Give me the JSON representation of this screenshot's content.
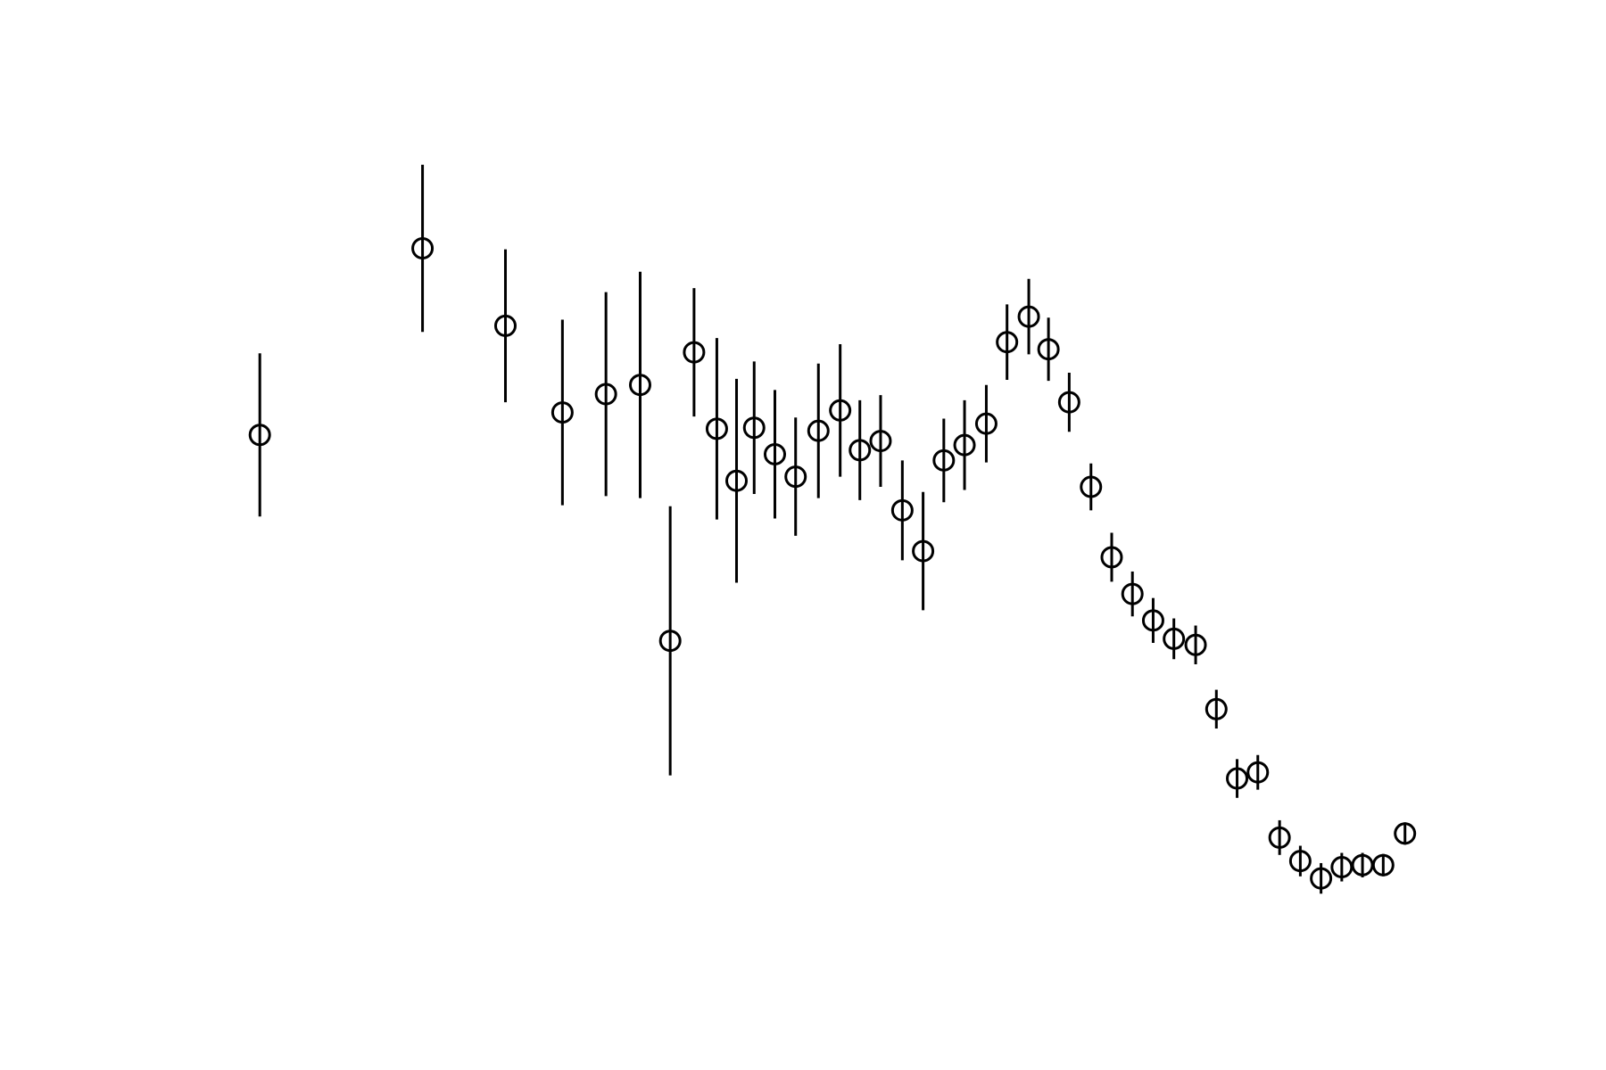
{
  "chart_data": {
    "type": "errorbar",
    "color": "#000000",
    "marker": "open-circle",
    "x": [
      251,
      408,
      488,
      543,
      585,
      618,
      647,
      670,
      692,
      711,
      728,
      748,
      768,
      790,
      811,
      830,
      850,
      871,
      891,
      911,
      931,
      952,
      972,
      993,
      1012,
      1032,
      1053,
      1073,
      1093,
      1113,
      1133,
      1154,
      1174,
      1194,
      1214,
      1235,
      1255,
      1275,
      1295,
      1315,
      1335,
      1356
    ],
    "values": [
      623,
      806,
      730,
      645,
      663,
      672,
      421,
      704,
      629,
      578,
      630,
      604,
      582,
      627,
      647,
      608,
      617,
      549,
      509,
      598,
      613,
      634,
      714,
      739,
      707,
      655,
      572,
      503,
      467,
      441,
      423,
      417,
      354,
      286,
      292,
      228,
      205,
      188,
      199,
      201,
      201,
      232
    ],
    "errors": [
      80,
      82,
      75,
      91,
      100,
      111,
      132,
      63,
      89,
      100,
      65,
      63,
      58,
      66,
      65,
      49,
      45,
      49,
      58,
      41,
      44,
      38,
      37,
      37,
      31,
      29,
      23,
      24,
      22,
      22,
      20,
      19,
      19,
      19,
      17,
      17,
      15,
      15,
      14,
      12,
      11,
      11
    ],
    "xlim": [
      194,
      1395
    ],
    "ylim": [
      126,
      935
    ]
  }
}
